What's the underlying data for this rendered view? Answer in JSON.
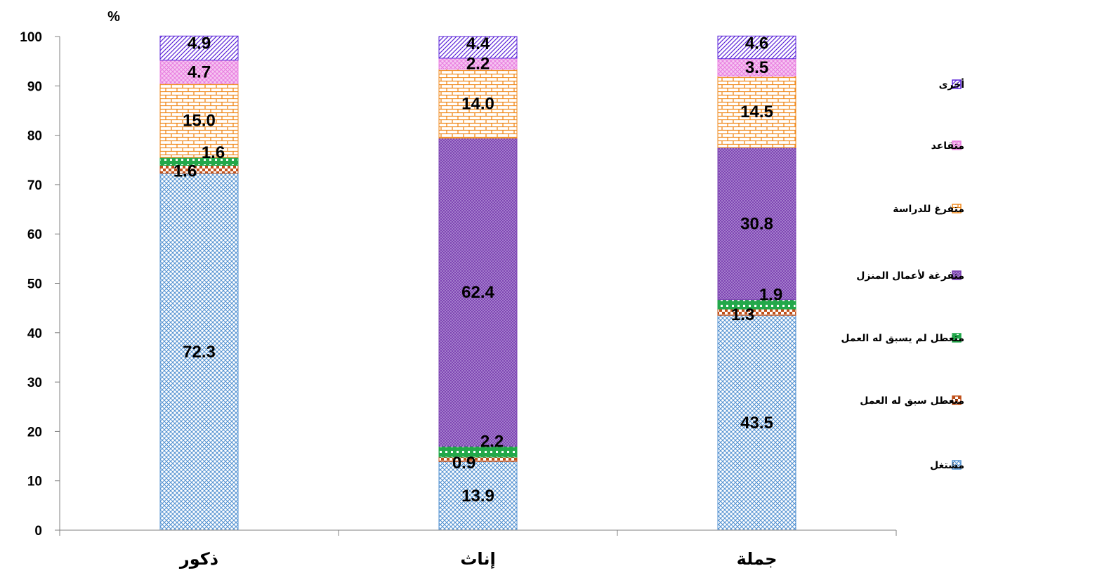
{
  "chart_data": {
    "type": "bar",
    "stacked": true,
    "ylabel": "%",
    "ylim": [
      0,
      100
    ],
    "yticks": [
      0,
      10,
      20,
      30,
      40,
      50,
      60,
      70,
      80,
      90,
      100
    ],
    "categories": [
      "ذكور",
      "إناث",
      "جملة"
    ],
    "series": [
      {
        "name": "مشتغل",
        "values": [
          72.3,
          13.9,
          43.5
        ],
        "color": "#4f8fd0",
        "labels": [
          "72.3",
          "13.9",
          "43.5"
        ]
      },
      {
        "name": "متعطل سبق له العمل",
        "values": [
          1.6,
          0.9,
          1.3
        ],
        "color": "#c0501a",
        "labels": [
          "1.6",
          "0.9",
          "1.3"
        ]
      },
      {
        "name": "متعطل لم يسبق له العمل",
        "values": [
          1.6,
          2.2,
          1.9
        ],
        "color": "#22a84a",
        "labels": [
          "1.6",
          "2.2",
          "1.9"
        ]
      },
      {
        "name": "متفرغة لأعمال المنزل",
        "values": [
          0,
          62.4,
          30.8
        ],
        "color": "#7a3fb0",
        "labels": [
          "",
          "62.4",
          "30.8"
        ]
      },
      {
        "name": "متفرغ للدراسة",
        "values": [
          15.0,
          14.0,
          14.5
        ],
        "color": "#f08a1e",
        "labels": [
          "15.0",
          "14.0",
          "14.5"
        ]
      },
      {
        "name": "متقاعد",
        "values": [
          4.7,
          2.2,
          3.5
        ],
        "color": "#e87ce0",
        "labels": [
          "4.7",
          "2.2",
          "3.5"
        ]
      },
      {
        "name": "أخرى",
        "values": [
          4.9,
          4.4,
          4.6
        ],
        "color": "#5a22d8",
        "labels": [
          "4.9",
          "4.4",
          "4.6"
        ]
      }
    ],
    "legend_position": "right",
    "grid": false
  }
}
